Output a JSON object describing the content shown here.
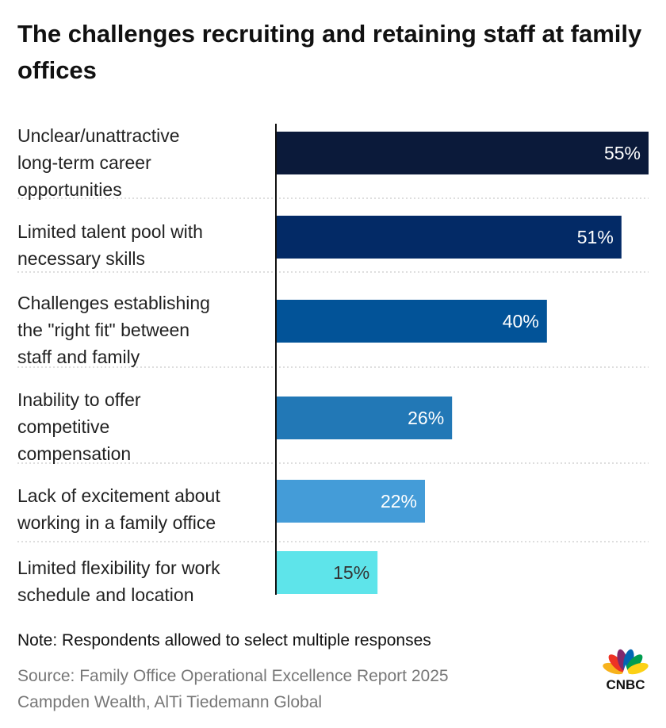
{
  "chart_data": {
    "type": "bar",
    "orientation": "horizontal",
    "title": "The challenges recruiting and retaining staff at family offices",
    "categories": [
      [
        "Unclear/unattractive",
        "long-term career",
        "opportunities"
      ],
      [
        "Limited talent pool with",
        "necessary skills"
      ],
      [
        "Challenges establishing",
        "the \"right fit\" between",
        "staff and family"
      ],
      [
        "Inability to offer",
        "competitive",
        "compensation"
      ],
      [
        "Lack of excitement about",
        "working in a family office"
      ],
      [
        "Limited flexibility for work",
        "schedule and location"
      ]
    ],
    "values": [
      55,
      51,
      40,
      26,
      22,
      15
    ],
    "value_labels": [
      "55%",
      "51%",
      "40%",
      "26%",
      "22%",
      "15%"
    ],
    "bar_colors": [
      "#0b1a3a",
      "#032a66",
      "#025398",
      "#2278b6",
      "#449cd8",
      "#5ee4ea"
    ],
    "value_label_colors": [
      "#ffffff",
      "#ffffff",
      "#ffffff",
      "#ffffff",
      "#ffffff",
      "#333333"
    ],
    "xlim": [
      0,
      55
    ],
    "xlabel": "",
    "ylabel": "",
    "grid": false
  },
  "footer": {
    "note": "Note: Respondents allowed to select multiple responses",
    "source_line1": "Source: Family Office Operational Excellence Report 2025",
    "source_line2": "Campden Wealth, AlTi Tiedemann Global"
  },
  "logo": {
    "text": "CNBC",
    "feather_colors": [
      "#f7b21c",
      "#ee3324",
      "#80286c",
      "#0066b3",
      "#009d4f",
      "#fcd116"
    ]
  }
}
